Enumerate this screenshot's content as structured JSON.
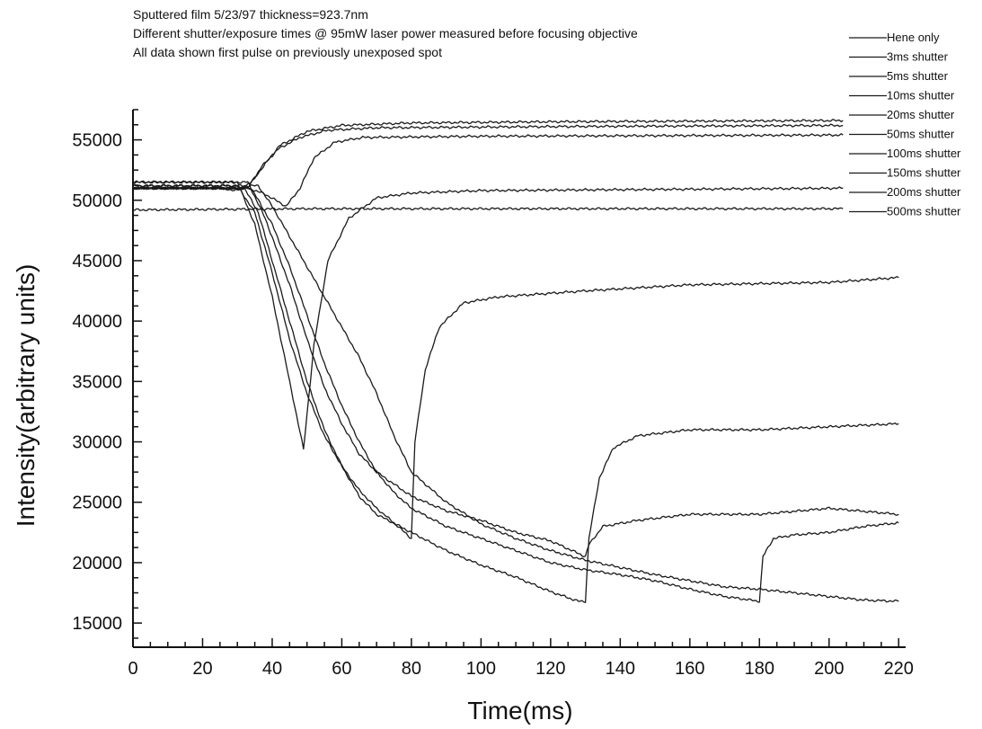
{
  "header": {
    "line1": "Sputtered film 5/23/97 thickness=923.7nm",
    "line2": "Different shutter/exposure times @ 95mW laser power measured before focusing objective",
    "line3": "All data shown first pulse on previously unexposed spot"
  },
  "chart_data": {
    "type": "line",
    "xlabel": "Time(ms)",
    "ylabel": "Intensity(arbitrary units)",
    "xlim": [
      0,
      222
    ],
    "ylim": [
      13000,
      57500
    ],
    "xticks": [
      0,
      20,
      40,
      60,
      80,
      100,
      120,
      140,
      160,
      180,
      200,
      220
    ],
    "yticks": [
      15000,
      20000,
      25000,
      30000,
      35000,
      40000,
      45000,
      50000,
      55000
    ],
    "grid": false,
    "legend_position": "top-right",
    "series": [
      {
        "name": "Hene only",
        "points": [
          [
            0,
            49200
          ],
          [
            50,
            49300
          ],
          [
            100,
            49300
          ],
          [
            150,
            49300
          ],
          [
            204,
            49300
          ]
        ]
      },
      {
        "name": "3ms   shutter",
        "points": [
          [
            0,
            51000
          ],
          [
            25,
            51000
          ],
          [
            30,
            50800
          ],
          [
            34,
            51500
          ],
          [
            38,
            53000
          ],
          [
            42,
            54500
          ],
          [
            50,
            55700
          ],
          [
            60,
            56200
          ],
          [
            80,
            56400
          ],
          [
            120,
            56500
          ],
          [
            204,
            56600
          ]
        ]
      },
      {
        "name": "5ms   shutter",
        "points": [
          [
            0,
            51000
          ],
          [
            28,
            51000
          ],
          [
            33,
            51000
          ],
          [
            37,
            52800
          ],
          [
            42,
            54300
          ],
          [
            48,
            55200
          ],
          [
            56,
            55800
          ],
          [
            70,
            56000
          ],
          [
            120,
            56100
          ],
          [
            204,
            56200
          ]
        ]
      },
      {
        "name": "10ms  shutter",
        "points": [
          [
            0,
            51000
          ],
          [
            33,
            51000
          ],
          [
            38,
            50500
          ],
          [
            44,
            49500
          ],
          [
            48,
            51000
          ],
          [
            52,
            53500
          ],
          [
            58,
            54800
          ],
          [
            66,
            55200
          ],
          [
            100,
            55300
          ],
          [
            204,
            55400
          ]
        ]
      },
      {
        "name": "20ms  shutter",
        "points": [
          [
            0,
            51500
          ],
          [
            30,
            51500
          ],
          [
            35,
            48000
          ],
          [
            40,
            42000
          ],
          [
            45,
            35000
          ],
          [
            49,
            29400
          ],
          [
            52,
            38000
          ],
          [
            56,
            45000
          ],
          [
            62,
            48500
          ],
          [
            70,
            50200
          ],
          [
            80,
            50600
          ],
          [
            100,
            50800
          ],
          [
            150,
            50900
          ],
          [
            204,
            51000
          ]
        ]
      },
      {
        "name": "50ms  shutter",
        "points": [
          [
            0,
            51200
          ],
          [
            30,
            51200
          ],
          [
            35,
            49000
          ],
          [
            40,
            44000
          ],
          [
            45,
            38500
          ],
          [
            50,
            34000
          ],
          [
            55,
            30500
          ],
          [
            60,
            28000
          ],
          [
            65,
            26000
          ],
          [
            70,
            24500
          ],
          [
            75,
            23300
          ],
          [
            80,
            22000
          ],
          [
            81,
            30000
          ],
          [
            84,
            36000
          ],
          [
            88,
            39500
          ],
          [
            95,
            41500
          ],
          [
            105,
            42000
          ],
          [
            130,
            42500
          ],
          [
            160,
            43000
          ],
          [
            200,
            43200
          ],
          [
            220,
            43600
          ]
        ]
      },
      {
        "name": "100ms shutter",
        "points": [
          [
            0,
            51000
          ],
          [
            32,
            51000
          ],
          [
            36,
            49000
          ],
          [
            40,
            45000
          ],
          [
            45,
            40000
          ],
          [
            50,
            35000
          ],
          [
            55,
            31000
          ],
          [
            60,
            28000
          ],
          [
            65,
            25500
          ],
          [
            70,
            24000
          ],
          [
            80,
            22500
          ],
          [
            90,
            21000
          ],
          [
            100,
            19800
          ],
          [
            110,
            18800
          ],
          [
            120,
            17600
          ],
          [
            128,
            16800
          ],
          [
            130,
            16800
          ],
          [
            131,
            22000
          ],
          [
            134,
            27000
          ],
          [
            138,
            29500
          ],
          [
            145,
            30500
          ],
          [
            160,
            31000
          ],
          [
            180,
            31000
          ],
          [
            220,
            31500
          ]
        ]
      },
      {
        "name": "150ms shutter",
        "points": [
          [
            0,
            51500
          ],
          [
            33,
            51500
          ],
          [
            38,
            48500
          ],
          [
            45,
            43000
          ],
          [
            50,
            38500
          ],
          [
            55,
            34500
          ],
          [
            60,
            31500
          ],
          [
            65,
            29000
          ],
          [
            70,
            27500
          ],
          [
            80,
            25500
          ],
          [
            90,
            24300
          ],
          [
            100,
            23500
          ],
          [
            110,
            22500
          ],
          [
            120,
            21800
          ],
          [
            130,
            20500
          ],
          [
            131,
            21500
          ],
          [
            135,
            23000
          ],
          [
            145,
            23500
          ],
          [
            160,
            24000
          ],
          [
            180,
            24000
          ],
          [
            200,
            24500
          ],
          [
            220,
            24000
          ]
        ]
      },
      {
        "name": "200ms shutter",
        "points": [
          [
            0,
            51000
          ],
          [
            34,
            51000
          ],
          [
            40,
            48000
          ],
          [
            45,
            44500
          ],
          [
            50,
            40500
          ],
          [
            55,
            36500
          ],
          [
            60,
            33000
          ],
          [
            65,
            30000
          ],
          [
            70,
            27500
          ],
          [
            75,
            25800
          ],
          [
            80,
            24500
          ],
          [
            90,
            23000
          ],
          [
            100,
            22000
          ],
          [
            110,
            21000
          ],
          [
            120,
            20000
          ],
          [
            130,
            19400
          ],
          [
            140,
            19000
          ],
          [
            150,
            18500
          ],
          [
            160,
            17800
          ],
          [
            170,
            17200
          ],
          [
            180,
            16800
          ],
          [
            181,
            20500
          ],
          [
            184,
            22000
          ],
          [
            190,
            22300
          ],
          [
            200,
            22500
          ],
          [
            210,
            23000
          ],
          [
            220,
            23300
          ]
        ]
      },
      {
        "name": "500ms shutter",
        "points": [
          [
            0,
            51200
          ],
          [
            36,
            51200
          ],
          [
            40,
            49500
          ],
          [
            45,
            47000
          ],
          [
            50,
            44500
          ],
          [
            55,
            42000
          ],
          [
            60,
            39500
          ],
          [
            65,
            37000
          ],
          [
            70,
            34000
          ],
          [
            75,
            30500
          ],
          [
            80,
            27500
          ],
          [
            90,
            25000
          ],
          [
            100,
            23200
          ],
          [
            110,
            22000
          ],
          [
            120,
            21000
          ],
          [
            130,
            20200
          ],
          [
            140,
            19600
          ],
          [
            150,
            19000
          ],
          [
            160,
            18500
          ],
          [
            170,
            18000
          ],
          [
            180,
            17800
          ],
          [
            190,
            17500
          ],
          [
            200,
            17200
          ],
          [
            210,
            16900
          ],
          [
            220,
            16800
          ]
        ]
      }
    ]
  }
}
